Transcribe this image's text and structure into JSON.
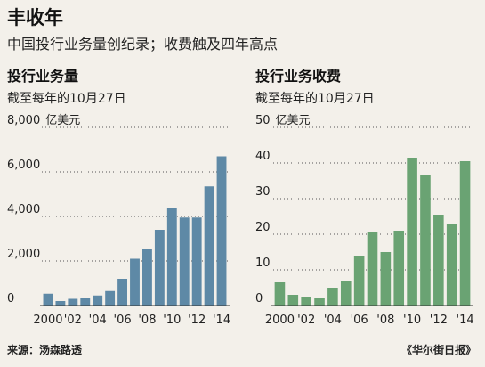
{
  "header": {
    "title": "丰收年",
    "subtitle": "中国投行业务量创纪录；收费触及四年高点"
  },
  "footer": {
    "source": "来源：汤森路透",
    "publisher": "《华尔街日报》"
  },
  "colors": {
    "left_bar": "#5e89a6",
    "right_bar": "#6aa373",
    "background": "#f3f0ea"
  },
  "chart_data": [
    {
      "type": "bar",
      "title": "投行业务量",
      "subtitle": "截至每年的10月27日",
      "unit_label": "亿美元",
      "categories": [
        "2000",
        "2001",
        "2002",
        "2003",
        "2004",
        "2005",
        "2006",
        "2007",
        "2008",
        "2009",
        "2010",
        "2011",
        "2012",
        "2013",
        "2014"
      ],
      "values": [
        530,
        200,
        300,
        350,
        450,
        650,
        1200,
        2100,
        2550,
        3400,
        4400,
        3950,
        3950,
        5350,
        6700
      ],
      "ylim": [
        0,
        8000
      ],
      "yticks": [
        0,
        2000,
        4000,
        6000,
        8000
      ],
      "ytick_labels": [
        "0",
        "2,000",
        "4,000",
        "6,000",
        "8,000"
      ],
      "xtick_labels": [
        "2000",
        "'02",
        "'04",
        "'06",
        "'08",
        "'10",
        "'12",
        "'14"
      ],
      "grid": true
    },
    {
      "type": "bar",
      "title": "投行业务收费",
      "subtitle": "截至每年的10月27日",
      "unit_label": "亿美元",
      "categories": [
        "2000",
        "2001",
        "2002",
        "2003",
        "2004",
        "2005",
        "2006",
        "2007",
        "2008",
        "2009",
        "2010",
        "2011",
        "2012",
        "2013",
        "2014"
      ],
      "values": [
        6.5,
        3.0,
        2.5,
        2.0,
        5.0,
        7.0,
        14.0,
        20.5,
        15.0,
        21.0,
        41.5,
        36.5,
        25.5,
        23.0,
        40.5
      ],
      "ylim": [
        0,
        50
      ],
      "yticks": [
        0,
        10,
        20,
        30,
        40,
        50
      ],
      "ytick_labels": [
        "0",
        "10",
        "20",
        "30",
        "40",
        "50"
      ],
      "xtick_labels": [
        "2000",
        "'02",
        "'04",
        "'06",
        "'08",
        "'10",
        "'12",
        "'14"
      ],
      "grid": true
    }
  ]
}
